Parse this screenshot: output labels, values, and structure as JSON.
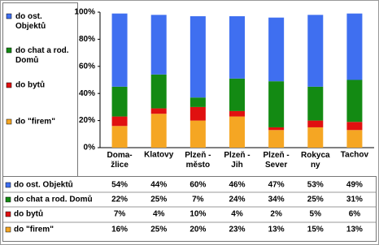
{
  "chart_data": {
    "type": "stacked_bar",
    "categories": [
      "Doma-\nžlice",
      "Klatovy",
      "Plzeň -\nměsto",
      "Plzeň -\nJih",
      "Plzeň -\nSever",
      "Rokyca\nny",
      "Tachov"
    ],
    "series": [
      {
        "name": "do ost. Objektů",
        "color": "#3f6ff0",
        "values": [
          54,
          44,
          60,
          46,
          47,
          53,
          49
        ],
        "value_labels": [
          "54%",
          "44%",
          "60%",
          "46%",
          "47%",
          "53%",
          "49%"
        ]
      },
      {
        "name": "do chat a rod. Domů",
        "color": "#138a13",
        "values": [
          22,
          25,
          7,
          24,
          34,
          25,
          31
        ],
        "value_labels": [
          "22%",
          "25%",
          "7%",
          "24%",
          "34%",
          "25%",
          "31%"
        ]
      },
      {
        "name": "do bytů",
        "color": "#e01010",
        "values": [
          7,
          4,
          10,
          4,
          2,
          5,
          6
        ],
        "value_labels": [
          "7%",
          "4%",
          "10%",
          "4%",
          "2%",
          "5%",
          "6%"
        ]
      },
      {
        "name": "do \"firem\"",
        "color": "#f5a623",
        "values": [
          16,
          25,
          20,
          23,
          13,
          15,
          13
        ],
        "value_labels": [
          "16%",
          "25%",
          "20%",
          "23%",
          "13%",
          "15%",
          "13%"
        ]
      }
    ],
    "ylim": [
      0,
      100
    ],
    "yticks": [
      {
        "value": 0,
        "label": "0%"
      },
      {
        "value": 20,
        "label": "20%"
      },
      {
        "value": 40,
        "label": "40%"
      },
      {
        "value": 60,
        "label": "60%"
      },
      {
        "value": 80,
        "label": "80%"
      },
      {
        "value": 100,
        "label": "100%"
      }
    ]
  }
}
